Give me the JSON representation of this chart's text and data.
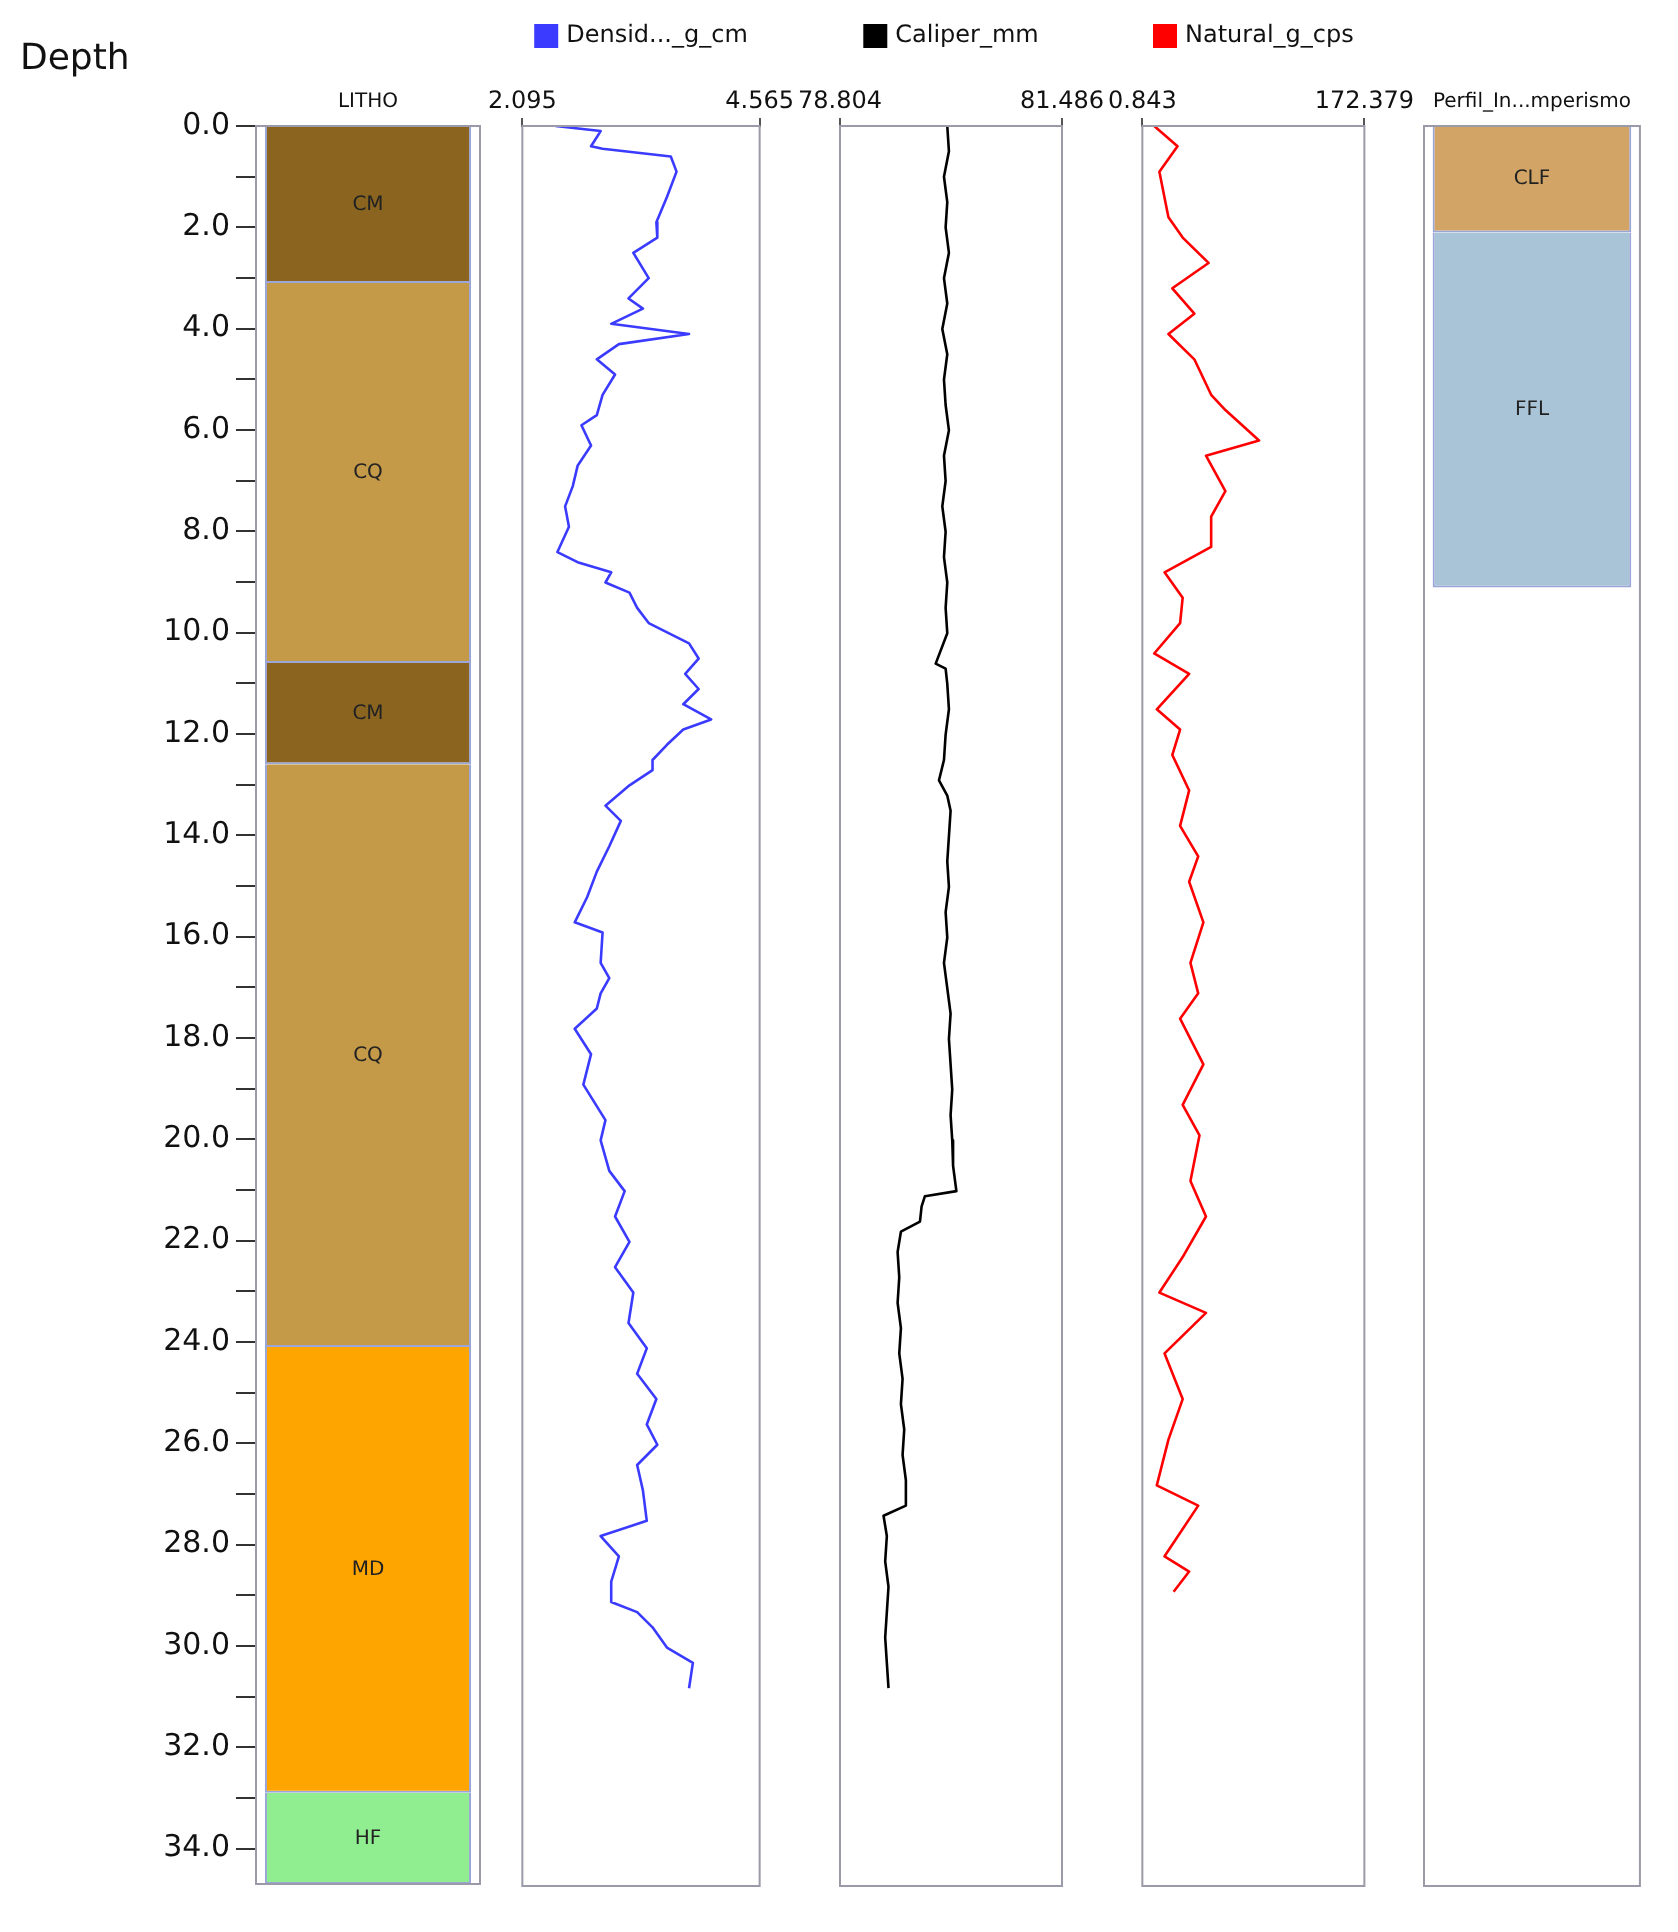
{
  "chart_data": [
    {
      "type": "bar",
      "ylabel": "Depth",
      "stacked": true,
      "categories": [
        "LITHO"
      ],
      "ylim": [
        34.7,
        0
      ],
      "grid": false,
      "yticks": [
        {
          "value": 0,
          "label": "0.0"
        },
        {
          "value": 1,
          "label": null
        },
        {
          "value": 2,
          "label": "2.0"
        },
        {
          "value": 3,
          "label": null
        },
        {
          "value": 4,
          "label": "4.0"
        },
        {
          "value": 5,
          "label": null
        },
        {
          "value": 6,
          "label": "6.0"
        },
        {
          "value": 7,
          "label": null
        },
        {
          "value": 8,
          "label": "8.0"
        },
        {
          "value": 9,
          "label": null
        },
        {
          "value": 10,
          "label": "10.0"
        },
        {
          "value": 11,
          "label": null
        },
        {
          "value": 12,
          "label": "12.0"
        },
        {
          "value": 13,
          "label": null
        },
        {
          "value": 14,
          "label": "14.0"
        },
        {
          "value": 15,
          "label": null
        },
        {
          "value": 16,
          "label": "16.0"
        },
        {
          "value": 17,
          "label": null
        },
        {
          "value": 18,
          "label": "18.0"
        },
        {
          "value": 19,
          "label": null
        },
        {
          "value": 20,
          "label": "20.0"
        },
        {
          "value": 21,
          "label": null
        },
        {
          "value": 22,
          "label": "22.0"
        },
        {
          "value": 23,
          "label": null
        },
        {
          "value": 24,
          "label": "24.0"
        },
        {
          "value": 25,
          "label": null
        },
        {
          "value": 26,
          "label": "26.0"
        },
        {
          "value": 27,
          "label": null
        },
        {
          "value": 28,
          "label": "28.0"
        },
        {
          "value": 29,
          "label": null
        },
        {
          "value": 30,
          "label": "30.0"
        },
        {
          "value": 31,
          "label": null
        },
        {
          "value": 32,
          "label": "32.0"
        },
        {
          "value": 33,
          "label": null
        },
        {
          "value": 34,
          "label": "34.0"
        }
      ],
      "series": [
        {
          "name": "CM",
          "color": "#8b6520",
          "values": [
            3.1
          ]
        },
        {
          "name": "CQ",
          "color": "#c49a48",
          "values": [
            7.5
          ]
        },
        {
          "name": "CM",
          "color": "#8b6520",
          "values": [
            2.0
          ]
        },
        {
          "name": "CQ",
          "color": "#c49a48",
          "values": [
            11.5
          ]
        },
        {
          "name": "MD",
          "color": "#ffa500",
          "values": [
            8.8
          ]
        },
        {
          "name": "HF",
          "color": "#90ee90",
          "values": [
            1.8
          ]
        }
      ]
    },
    {
      "type": "line",
      "legend": "top",
      "tick_labels": "x",
      "xlim": [
        2.095,
        4.565
      ],
      "xticks": [
        2.095,
        4.565
      ],
      "ylim": [
        34.7,
        0
      ],
      "grid": false,
      "marker": "none",
      "line_style": "solid",
      "series": [
        {
          "name": "Densid..._g_cm",
          "color": "#3b3bff",
          "x": [
            2.44,
            2.91,
            2.81,
            2.93,
            3.64,
            3.7,
            3.6,
            3.49,
            3.5,
            3.25,
            3.41,
            3.2,
            3.35,
            3.02,
            3.83,
            3.1,
            2.87,
            3.06,
            2.93,
            2.87,
            2.71,
            2.81,
            2.67,
            2.62,
            2.54,
            2.58,
            2.46,
            2.67,
            3.02,
            2.96,
            3.21,
            3.29,
            3.41,
            3.83,
            3.93,
            3.79,
            3.93,
            3.77,
            4.06,
            3.77,
            3.6,
            3.45,
            3.45,
            3.21,
            2.96,
            3.12,
            3.0,
            2.87,
            2.77,
            2.64,
            2.93,
            2.91,
            3.0,
            2.91,
            2.87,
            2.64,
            2.81,
            2.73,
            2.96,
            2.91,
            3.0,
            3.16,
            3.06,
            3.21,
            3.06,
            3.25,
            3.2,
            3.39,
            3.29,
            3.49,
            3.39,
            3.5,
            3.29,
            3.35,
            3.39,
            2.91,
            3.1,
            3.02,
            3.02,
            3.29,
            3.45,
            3.6,
            3.87,
            3.83
          ],
          "values": [
            0.0,
            0.1,
            0.4,
            0.45,
            0.6,
            0.9,
            1.4,
            1.9,
            2.2,
            2.5,
            3.0,
            3.4,
            3.6,
            3.9,
            4.1,
            4.3,
            4.6,
            4.9,
            5.3,
            5.7,
            5.9,
            6.3,
            6.7,
            7.1,
            7.5,
            7.9,
            8.4,
            8.6,
            8.8,
            9.0,
            9.2,
            9.5,
            9.8,
            10.2,
            10.5,
            10.8,
            11.1,
            11.4,
            11.7,
            11.9,
            12.2,
            12.5,
            12.7,
            13.0,
            13.4,
            13.7,
            14.2,
            14.7,
            15.2,
            15.7,
            15.9,
            16.5,
            16.8,
            17.1,
            17.4,
            17.8,
            18.3,
            18.9,
            19.6,
            20.0,
            20.6,
            21.0,
            21.5,
            22.0,
            22.5,
            23.0,
            23.6,
            24.1,
            24.6,
            25.1,
            25.6,
            26.0,
            26.4,
            26.9,
            27.5,
            27.8,
            28.2,
            28.7,
            29.1,
            29.3,
            29.6,
            30.0,
            30.3,
            30.8
          ]
        }
      ]
    },
    {
      "type": "line",
      "legend": "top",
      "tick_labels": "x",
      "xlim": [
        78.804,
        81.486
      ],
      "xticks": [
        78.804,
        81.486
      ],
      "ylim": [
        34.7,
        0
      ],
      "grid": false,
      "marker": "none",
      "line_style": "solid",
      "series": [
        {
          "name": "Caliper_mm",
          "color": "#000000",
          "x": [
            80.1,
            80.12,
            80.06,
            80.1,
            80.08,
            80.12,
            80.06,
            80.1,
            80.04,
            80.1,
            80.06,
            80.08,
            80.12,
            80.06,
            80.08,
            80.04,
            80.08,
            80.06,
            80.1,
            80.08,
            80.1,
            79.96,
            80.08,
            80.1,
            80.12,
            80.08,
            80.06,
            80.0,
            80.1,
            80.14,
            80.12,
            80.1,
            80.12,
            80.08,
            80.1,
            80.06,
            80.1,
            80.14,
            80.12,
            80.14,
            80.16,
            80.14,
            80.16,
            80.17,
            80.21,
            79.83,
            79.79,
            79.77,
            79.54,
            79.5,
            79.52,
            79.5,
            79.54,
            79.52,
            79.56,
            79.54,
            79.58,
            79.56,
            79.6,
            79.6,
            79.33,
            79.37,
            79.35,
            79.39,
            79.37,
            79.35,
            79.37,
            79.39
          ],
          "values": [
            0.0,
            0.5,
            1.0,
            1.5,
            2.0,
            2.5,
            3.0,
            3.5,
            4.0,
            4.5,
            5.0,
            5.5,
            6.0,
            6.5,
            7.0,
            7.5,
            8.0,
            8.5,
            9.0,
            9.5,
            10.0,
            10.6,
            10.7,
            11.0,
            11.5,
            12.0,
            12.5,
            12.9,
            13.2,
            13.5,
            14.0,
            14.5,
            15.0,
            15.5,
            16.0,
            16.5,
            17.0,
            17.5,
            18.0,
            18.5,
            19.0,
            19.5,
            20.0,
            20.5,
            21.0,
            21.1,
            21.3,
            21.6,
            21.8,
            22.2,
            22.7,
            23.2,
            23.7,
            24.2,
            24.7,
            25.2,
            25.7,
            26.2,
            26.7,
            27.2,
            27.4,
            27.8,
            28.3,
            28.8,
            29.3,
            29.8,
            30.3,
            30.8
          ]
        }
      ]
    },
    {
      "type": "line",
      "legend": "top",
      "tick_labels": "x",
      "xlim": [
        0.843,
        172.379
      ],
      "xticks": [
        0.843,
        172.379
      ],
      "ylim": [
        34.7,
        0
      ],
      "grid": false,
      "marker": "none",
      "line_style": "solid",
      "series": [
        {
          "name": "Natural_g_cps",
          "color": "#ff0000",
          "x": [
            10,
            28,
            14,
            21,
            32,
            52,
            24,
            41,
            21,
            41,
            54,
            65,
            91,
            50,
            65,
            54,
            54,
            18,
            32,
            30,
            10,
            37,
            12,
            30,
            24,
            37,
            30,
            44,
            37,
            48,
            38,
            44,
            30,
            48,
            32,
            45,
            38,
            50,
            32,
            14,
            50,
            18,
            32,
            21,
            12,
            44,
            18,
            37,
            25
          ],
          "values": [
            0.0,
            0.4,
            0.9,
            1.8,
            2.2,
            2.7,
            3.2,
            3.7,
            4.1,
            4.6,
            5.3,
            5.6,
            6.2,
            6.5,
            7.2,
            7.7,
            8.3,
            8.8,
            9.3,
            9.8,
            10.4,
            10.8,
            11.5,
            11.9,
            12.4,
            13.1,
            13.8,
            14.4,
            14.9,
            15.7,
            16.5,
            17.1,
            17.6,
            18.5,
            19.3,
            19.9,
            20.8,
            21.5,
            22.3,
            23.0,
            23.4,
            24.2,
            25.1,
            25.9,
            26.8,
            27.2,
            28.2,
            28.5,
            28.9
          ]
        }
      ]
    },
    {
      "type": "bar",
      "stacked": true,
      "tick_labels": "x",
      "categories": [
        "Perfil_In...mperismo"
      ],
      "ylim": [
        34.7,
        0
      ],
      "grid": false,
      "series": [
        {
          "name": "CLF",
          "color": "#d2a566",
          "values": [
            2.1
          ]
        },
        {
          "name": "FFL",
          "color": "#a8c4d6",
          "values": [
            7.0
          ]
        }
      ]
    }
  ]
}
